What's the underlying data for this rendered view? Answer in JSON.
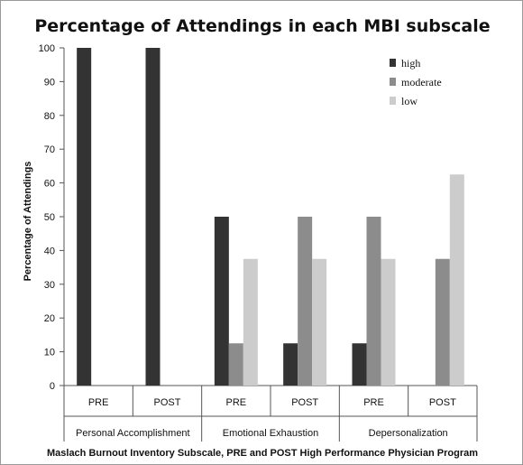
{
  "chart_data": {
    "type": "bar",
    "title": "Percentage of Attendings in each MBI subscale",
    "ylabel": "Percentage of Attendings",
    "xlabel": "Maslach Burnout Inventory Subscale, PRE and POST High Performance Physician Program",
    "ylim": [
      0,
      100
    ],
    "yticks": [
      0,
      10,
      20,
      30,
      40,
      50,
      60,
      70,
      80,
      90,
      100
    ],
    "categories": [
      "PRE",
      "POST",
      "PRE",
      "POST",
      "PRE",
      "POST"
    ],
    "groups": [
      {
        "label": "Personal Accomplishment",
        "span": 2
      },
      {
        "label": "Emotional Exhaustion",
        "span": 2
      },
      {
        "label": "Depersonalization",
        "span": 2
      }
    ],
    "series": [
      {
        "name": "high",
        "color": "#333333",
        "values": [
          100,
          100,
          50,
          12.5,
          12.5,
          0
        ]
      },
      {
        "name": "moderate",
        "color": "#8c8c8c",
        "values": [
          0,
          0,
          12.5,
          50,
          50,
          37.5
        ]
      },
      {
        "name": "low",
        "color": "#cccccc",
        "values": [
          0,
          0,
          37.5,
          37.5,
          37.5,
          62.5
        ]
      }
    ],
    "grid": false,
    "legend_position": "top-right"
  }
}
